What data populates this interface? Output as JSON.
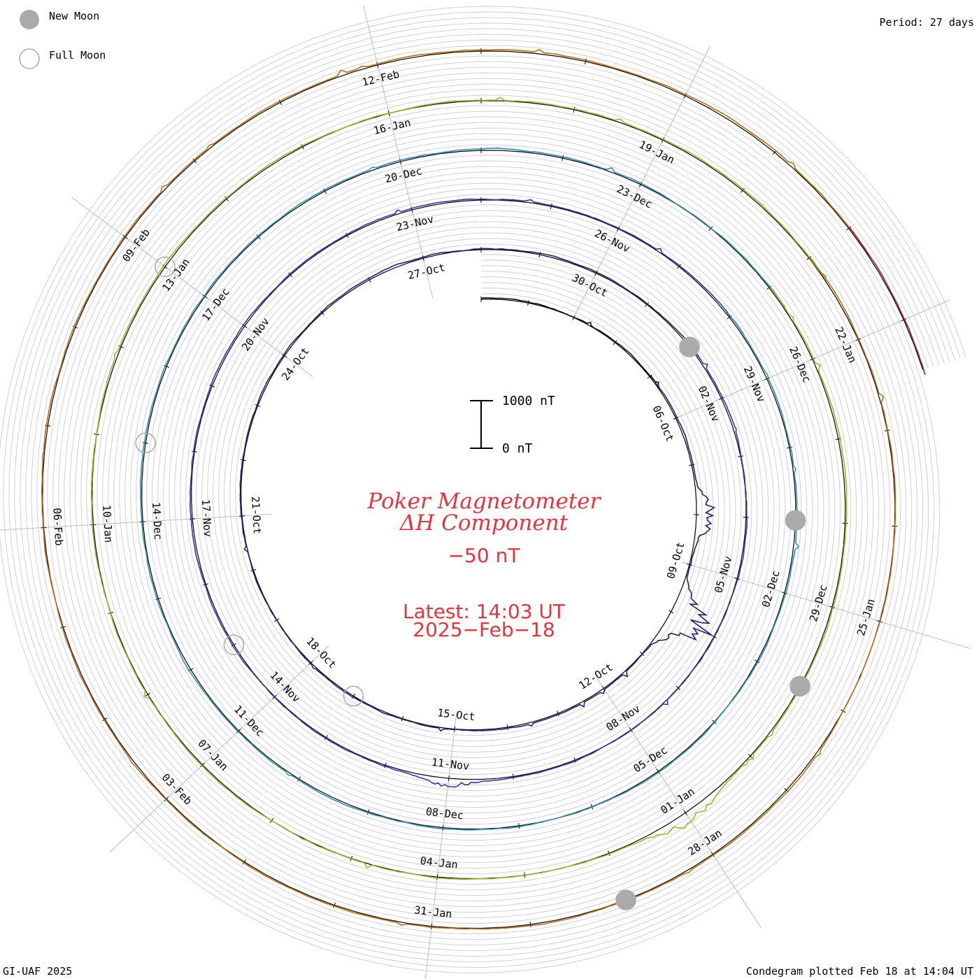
{
  "legend": {
    "new_moon_label": "New Moon",
    "full_moon_label": "Full Moon",
    "new_moon_color": "#aaaaaa",
    "full_moon_color": "#aaaaaa"
  },
  "period_label": "Period: 27 days",
  "credit": "GI-UAF 2025",
  "plotted": "Condegram plotted Feb 18 at 14:04 UT",
  "scale_bar": {
    "top_label": "1000 nT",
    "bottom_label": "0 nT"
  },
  "center": {
    "title_line1": "Poker Magnetometer",
    "title_line2": "ΔH Component",
    "baseline": "−50 nT",
    "latest_line1": "Latest: 14:03 UT",
    "latest_line2": "2025−Feb−18"
  },
  "chart_data": {
    "type": "line",
    "period_days": 27,
    "baseline_nT": -50,
    "scale_nT": [
      0,
      1000
    ],
    "rotations": [
      {
        "index": 0,
        "start": "2024-10-01",
        "color": "#111111",
        "date_labels": [
          "06-Oct",
          "09-Oct"
        ]
      },
      {
        "index": 1,
        "start": "2024-10-05",
        "color": "#2a1a78",
        "date_labels": [
          "12-Oct",
          "15-Oct",
          "18-Oct",
          "21-Oct",
          "24-Oct",
          "27-Oct",
          "30-Oct"
        ]
      },
      {
        "index": 2,
        "start": "2024-11-01",
        "color": "#2b38b0",
        "date_labels": [
          "02-Nov",
          "05-Nov",
          "08-Nov",
          "11-Nov",
          "14-Nov",
          "17-Nov",
          "20-Nov",
          "23-Nov",
          "26-Nov"
        ]
      },
      {
        "index": 3,
        "start": "2024-11-28",
        "color": "#2a92b0",
        "date_labels": [
          "29-Nov",
          "02-Dec",
          "05-Dec",
          "08-Dec",
          "11-Dec",
          "14-Dec",
          "17-Dec",
          "20-Dec",
          "23-Dec"
        ]
      },
      {
        "index": 4,
        "start": "2024-12-25",
        "color": "#8ebf2a",
        "date_labels": [
          "26-Dec",
          "29-Dec",
          "01-Jan",
          "04-Jan",
          "07-Jan",
          "10-Jan",
          "13-Jan",
          "16-Jan",
          "19-Jan"
        ]
      },
      {
        "index": 5,
        "start": "2025-01-21",
        "color": "#c06a10",
        "date_labels": [
          "22-Jan",
          "25-Jan",
          "28-Jan",
          "31-Jan",
          "03-Feb",
          "06-Feb",
          "09-Feb",
          "12-Feb"
        ]
      },
      {
        "index": 6,
        "start": "2025-02-17",
        "color": "#b01818",
        "date_labels": []
      }
    ],
    "peak_nT": [
      {
        "date": "2024-10-10",
        "value": 1000
      },
      {
        "date": "2024-10-08",
        "value": 420
      },
      {
        "date": "2024-11-11",
        "value": 180
      },
      {
        "date": "2025-01-01",
        "value": 260
      }
    ],
    "moons": [
      {
        "phase": "new",
        "date": "2024-11-01"
      },
      {
        "phase": "new",
        "date": "2024-12-01"
      },
      {
        "phase": "new",
        "date": "2024-12-30"
      },
      {
        "phase": "new",
        "date": "2025-01-29"
      },
      {
        "phase": "full",
        "date": "2024-10-17"
      },
      {
        "phase": "full",
        "date": "2024-11-15"
      },
      {
        "phase": "full",
        "date": "2024-12-15"
      },
      {
        "phase": "full",
        "date": "2025-01-13"
      }
    ]
  }
}
